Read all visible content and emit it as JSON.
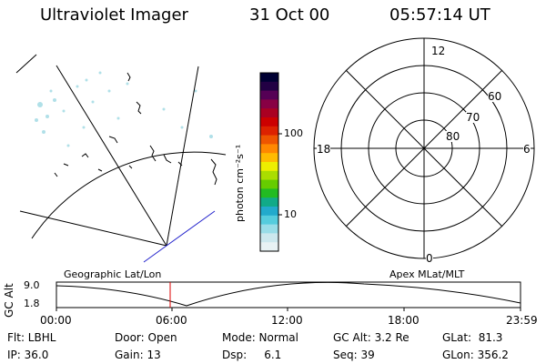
{
  "header": {
    "title": "Ultraviolet Imager",
    "date": "31 Oct 00",
    "time": "05:57:14 UT"
  },
  "colorbar": {
    "unit_label": "photon cm⁻²s⁻¹",
    "ticks": [
      "100",
      "10"
    ],
    "colors": [
      "#000033",
      "#220044",
      "#550055",
      "#880044",
      "#aa0022",
      "#cc0000",
      "#dd2200",
      "#ee5500",
      "#ff8800",
      "#ffbb00",
      "#eeee00",
      "#aadd00",
      "#66cc00",
      "#22bb22",
      "#11aa88",
      "#22aacc",
      "#55ccdd",
      "#99dde8",
      "#cce8ee",
      "#e8f2f4"
    ]
  },
  "polar_plot": {
    "mlt_labels": {
      "top": "12",
      "right": "6",
      "bottom": "0",
      "left": "18"
    },
    "mlat_labels": [
      "60",
      "70",
      "80"
    ]
  },
  "timeline": {
    "left_caption": "Geographic Lat/Lon",
    "right_caption": "Apex MLat/MLT",
    "axis_label": "GC Alt",
    "y_max": "9.0",
    "y_min": "1.8",
    "x_ticks": [
      "00:00",
      "06:00",
      "12:00",
      "18:00",
      "23:59"
    ]
  },
  "status": {
    "flt": "Flt: LBHL",
    "ip": "IP: 36.0",
    "door": "Door: Open",
    "gain": "Gain: 13",
    "mode": "Mode: Normal",
    "dsp": "Dsp:     6.1",
    "gc_alt": "GC Alt: 3.2 Re",
    "seq": "Seq: 39",
    "glat": "GLat:  81.3",
    "glon": "GLon: 356.2"
  }
}
